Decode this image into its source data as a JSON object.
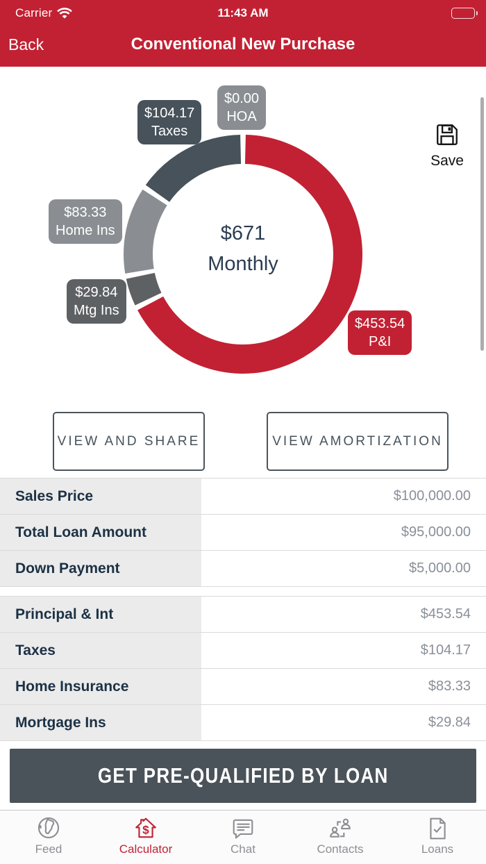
{
  "status_bar": {
    "carrier": "Carrier",
    "time": "11:43 AM"
  },
  "nav": {
    "back_label": "Back",
    "title": "Conventional New Purchase"
  },
  "chart": {
    "save_label": "Save"
  },
  "chart_data": {
    "type": "pie",
    "donut": true,
    "order": "clockwise-from-top",
    "center": {
      "value": "$671",
      "label": "Monthly"
    },
    "segments": [
      {
        "label": "P&I",
        "display": "$453.54",
        "value": 453.54,
        "color": "#C22133"
      },
      {
        "label": "Mtg Ins",
        "display": "$29.84",
        "value": 29.84,
        "color": "#5E6164"
      },
      {
        "label": "Home Ins",
        "display": "$83.33",
        "value": 83.33,
        "color": "#8A8E92"
      },
      {
        "label": "Taxes",
        "display": "$104.17",
        "value": 104.17,
        "color": "#47525A"
      },
      {
        "label": "HOA",
        "display": "$0.00",
        "value": 0.0,
        "color": "#8A8E92"
      }
    ]
  },
  "actions": {
    "view_share": "VIEW AND SHARE",
    "view_amortization": "VIEW AMORTIZATION",
    "cta": "GET PRE-QUALIFIED BY LOAN"
  },
  "table": {
    "groups": [
      {
        "rows": [
          {
            "label": "Sales Price",
            "value": "$100,000.00"
          },
          {
            "label": "Total Loan Amount",
            "value": "$95,000.00"
          },
          {
            "label": "Down Payment",
            "value": "$5,000.00"
          }
        ]
      },
      {
        "rows": [
          {
            "label": "Principal & Int",
            "value": "$453.54"
          },
          {
            "label": "Taxes",
            "value": "$104.17"
          },
          {
            "label": "Home Insurance",
            "value": "$83.33"
          },
          {
            "label": "Mortgage Ins",
            "value": "$29.84"
          }
        ]
      }
    ]
  },
  "tabbar": {
    "active_color": "#C22133",
    "inactive_color": "#8E8E93",
    "items": [
      {
        "label": "Feed",
        "icon": "globe-icon",
        "active": false
      },
      {
        "label": "Calculator",
        "icon": "house-dollar-icon",
        "active": true
      },
      {
        "label": "Chat",
        "icon": "chat-bubble-icon",
        "active": false
      },
      {
        "label": "Contacts",
        "icon": "contacts-icon",
        "active": false
      },
      {
        "label": "Loans",
        "icon": "document-check-icon",
        "active": false
      }
    ]
  }
}
